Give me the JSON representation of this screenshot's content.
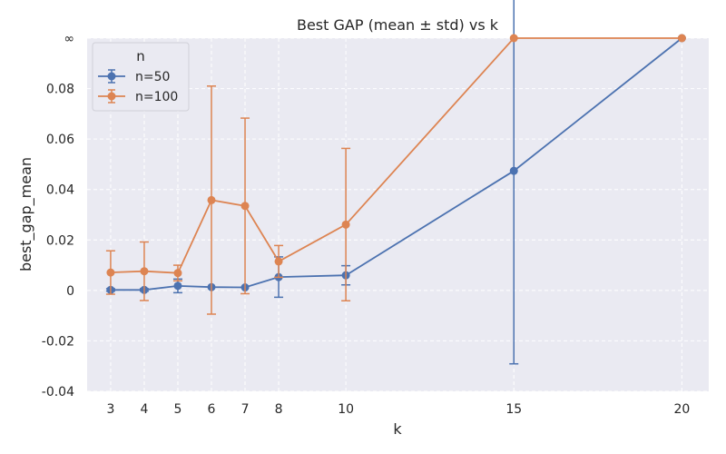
{
  "chart_data": {
    "type": "line",
    "title": "Best GAP (mean ± std) vs k",
    "xlabel": "k",
    "ylabel": "best_gap_mean",
    "x_ticks": [
      3,
      4,
      5,
      6,
      7,
      8,
      10,
      15,
      20
    ],
    "y_ticks": [
      "-0.04",
      "-0.02",
      "0",
      "0.02",
      "0.04",
      "0.06",
      "0.08",
      "∞"
    ],
    "y_tick_values": [
      -0.04,
      -0.02,
      0,
      0.02,
      0.04,
      0.06,
      0.08,
      0.1
    ],
    "xlim": [
      2.3,
      20.8
    ],
    "ylim": [
      -0.04,
      0.1
    ],
    "grid": true,
    "legend": {
      "title": "n",
      "placement": "top-left"
    },
    "series": [
      {
        "name": "n=50",
        "color": "#4c72b0",
        "x": [
          3,
          4,
          5,
          6,
          7,
          8,
          10,
          15,
          20
        ],
        "y": [
          0.0002,
          0.0002,
          0.0018,
          0.0013,
          0.0012,
          0.0053,
          0.006,
          0.0474,
          0.1
        ],
        "err": [
          0.0005,
          0.0005,
          0.0027,
          0.0,
          0.0,
          0.008,
          0.0038,
          0.0765,
          0.0
        ]
      },
      {
        "name": "n=100",
        "color": "#dd8452",
        "x": [
          3,
          4,
          5,
          6,
          7,
          8,
          10,
          15,
          20
        ],
        "y": [
          0.0071,
          0.0076,
          0.0069,
          0.0358,
          0.0335,
          0.0115,
          0.0261,
          0.1,
          0.1
        ],
        "err": [
          0.0086,
          0.0116,
          0.0031,
          0.0452,
          0.0348,
          0.0063,
          0.0302,
          0.0,
          0.0
        ]
      }
    ]
  }
}
